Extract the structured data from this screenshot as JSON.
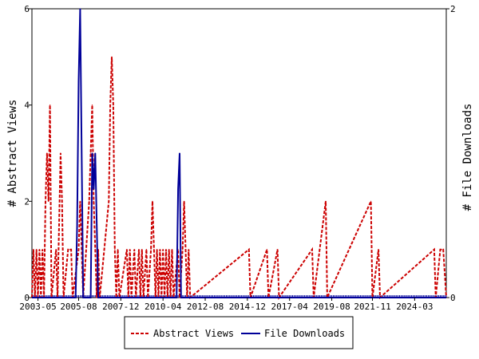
{
  "chart_data": {
    "type": "line",
    "title": "",
    "x_tick_labels": [
      "2003-05",
      "2005-08",
      "2007-12",
      "2010-04",
      "2012-08",
      "2014-12",
      "2017-04",
      "2019-08",
      "2021-11",
      "2024-03"
    ],
    "y_left": {
      "label": "# Abstract Views",
      "ylim": [
        0,
        6
      ],
      "ticks": [
        0,
        2,
        4,
        6
      ]
    },
    "y_right": {
      "label": "# File Downloads",
      "ylim": [
        0,
        2
      ],
      "ticks": [
        0,
        2
      ]
    },
    "grid": false,
    "legend_position": "bottom",
    "series": [
      {
        "name": "Abstract Views",
        "axis": "left",
        "color": "#cc0000",
        "style": "dashed",
        "points": [
          [
            "2003-02",
            1
          ],
          [
            "2003-03",
            0
          ],
          [
            "2003-04",
            1
          ],
          [
            "2003-05",
            0
          ],
          [
            "2003-06",
            1
          ],
          [
            "2003-07",
            0
          ],
          [
            "2003-08",
            1
          ],
          [
            "2003-09",
            0
          ],
          [
            "2003-10",
            2
          ],
          [
            "2003-11",
            3
          ],
          [
            "2003-12",
            2
          ],
          [
            "2004-01",
            4
          ],
          [
            "2004-02",
            0
          ],
          [
            "2004-05",
            1
          ],
          [
            "2004-06",
            0
          ],
          [
            "2004-08",
            3
          ],
          [
            "2004-09",
            2
          ],
          [
            "2004-10",
            0
          ],
          [
            "2005-01",
            1
          ],
          [
            "2005-02",
            1
          ],
          [
            "2005-03",
            1
          ],
          [
            "2005-04",
            0
          ],
          [
            "2005-08",
            1
          ],
          [
            "2005-09",
            2
          ],
          [
            "2005-10",
            1
          ],
          [
            "2005-11",
            0
          ],
          [
            "2006-03",
            2
          ],
          [
            "2006-04",
            3
          ],
          [
            "2006-05",
            4
          ],
          [
            "2006-06",
            2
          ],
          [
            "2006-07",
            1
          ],
          [
            "2006-08",
            0
          ],
          [
            "2006-09",
            1
          ],
          [
            "2006-10",
            0
          ],
          [
            "2007-04",
            2
          ],
          [
            "2007-05",
            4
          ],
          [
            "2007-06",
            5
          ],
          [
            "2007-07",
            4
          ],
          [
            "2007-08",
            1
          ],
          [
            "2007-09",
            0
          ],
          [
            "2007-10",
            1
          ],
          [
            "2007-11",
            0
          ],
          [
            "2008-04",
            1
          ],
          [
            "2008-05",
            0
          ],
          [
            "2008-06",
            1
          ],
          [
            "2008-07",
            0
          ],
          [
            "2008-09",
            1
          ],
          [
            "2008-10",
            0
          ],
          [
            "2008-12",
            1
          ],
          [
            "2009-01",
            0
          ],
          [
            "2009-02",
            1
          ],
          [
            "2009-03",
            0
          ],
          [
            "2009-05",
            1
          ],
          [
            "2009-06",
            0
          ],
          [
            "2009-08",
            1
          ],
          [
            "2009-09",
            2
          ],
          [
            "2009-10",
            1
          ],
          [
            "2009-11",
            0
          ],
          [
            "2009-12",
            1
          ],
          [
            "2010-01",
            0
          ],
          [
            "2010-02",
            1
          ],
          [
            "2010-03",
            0
          ],
          [
            "2010-04",
            1
          ],
          [
            "2010-05",
            0
          ],
          [
            "2010-06",
            1
          ],
          [
            "2010-07",
            0
          ],
          [
            "2010-08",
            1
          ],
          [
            "2010-09",
            0
          ],
          [
            "2010-10",
            1
          ],
          [
            "2010-11",
            0
          ],
          [
            "2011-02",
            1
          ],
          [
            "2011-03",
            0
          ],
          [
            "2011-05",
            1
          ],
          [
            "2011-06",
            2
          ],
          [
            "2011-07",
            1
          ],
          [
            "2011-08",
            0
          ],
          [
            "2011-09",
            1
          ],
          [
            "2011-10",
            0
          ],
          [
            "2015-01",
            1
          ],
          [
            "2015-02",
            0
          ],
          [
            "2016-01",
            1
          ],
          [
            "2016-02",
            0
          ],
          [
            "2016-08",
            1
          ],
          [
            "2016-09",
            0
          ],
          [
            "2018-07",
            1
          ],
          [
            "2018-08",
            0
          ],
          [
            "2019-04",
            2
          ],
          [
            "2019-05",
            0
          ],
          [
            "2021-10",
            2
          ],
          [
            "2021-11",
            0
          ],
          [
            "2022-03",
            1
          ],
          [
            "2022-04",
            0
          ],
          [
            "2025-04",
            1
          ],
          [
            "2025-05",
            0
          ],
          [
            "2025-08",
            1
          ],
          [
            "2025-09",
            1
          ],
          [
            "2025-10",
            1
          ]
        ]
      },
      {
        "name": "File Downloads",
        "axis": "right",
        "color": "#000099",
        "style": "solid",
        "points": [
          [
            "2005-06",
            0
          ],
          [
            "2005-07",
            0.5
          ],
          [
            "2005-08",
            1.5
          ],
          [
            "2005-09",
            2
          ],
          [
            "2005-10",
            1
          ],
          [
            "2005-11",
            0
          ],
          [
            "2006-04",
            0
          ],
          [
            "2006-05",
            1
          ],
          [
            "2006-06",
            0.75
          ],
          [
            "2006-07",
            1
          ],
          [
            "2006-08",
            0.5
          ],
          [
            "2006-09",
            0
          ],
          [
            "2011-01",
            0
          ],
          [
            "2011-02",
            0.75
          ],
          [
            "2011-03",
            1
          ],
          [
            "2011-04",
            0
          ]
        ]
      }
    ]
  }
}
